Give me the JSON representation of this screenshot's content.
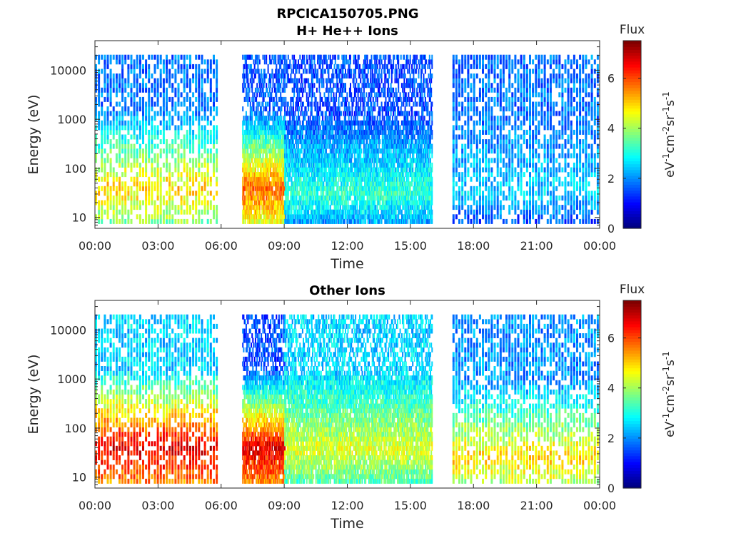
{
  "figure_title": "RPCICA150705.PNG",
  "colorbar": {
    "label": "Flux",
    "units_parts": [
      "eV",
      "-1",
      "cm",
      "-2",
      "sr",
      "-1",
      "s",
      "-1"
    ],
    "ticks": [
      "0",
      "2",
      "4",
      "6"
    ],
    "range": [
      0,
      7.5
    ]
  },
  "colors": {
    "axis": "#262626",
    "title": "#000000",
    "background": "#ffffff"
  },
  "chart_data": [
    {
      "type": "heatmap",
      "title": "H+ He++ Ions",
      "xlabel": "Time",
      "ylabel": "Energy (eV)",
      "y_scale": "log",
      "ylim": [
        6,
        40000
      ],
      "xlim": [
        "00:00",
        "24:00"
      ],
      "x_tick_labels": [
        "00:00",
        "03:00",
        "06:00",
        "09:00",
        "12:00",
        "15:00",
        "18:00",
        "21:00",
        "00:00"
      ],
      "y_tick_labels": [
        "10",
        "100",
        "1000",
        "10000"
      ],
      "data_gaps": [
        [
          "05:45",
          "07:00"
        ],
        [
          "16:00",
          "17:00"
        ]
      ],
      "segments": [
        {
          "start": "00:00",
          "end": "05:45",
          "mode": "burst",
          "peak_energy_eV": 40,
          "peak_flux": 5.0,
          "high_energy_flux": 1.8
        },
        {
          "start": "07:00",
          "end": "09:00",
          "mode": "continuous",
          "peak_energy_eV": 40,
          "peak_flux": 5.8,
          "high_energy_flux": 1.6
        },
        {
          "start": "09:00",
          "end": "16:00",
          "mode": "continuous",
          "peak_energy_eV": 30,
          "peak_flux": 3.2,
          "high_energy_flux": 1.5
        },
        {
          "start": "17:00",
          "end": "24:00",
          "mode": "burst",
          "peak_energy_eV": 30,
          "peak_flux": 2.5,
          "high_energy_flux": 1.8
        }
      ]
    },
    {
      "type": "heatmap",
      "title": "Other Ions",
      "xlabel": "Time",
      "ylabel": "Energy (eV)",
      "y_scale": "log",
      "ylim": [
        6,
        40000
      ],
      "xlim": [
        "00:00",
        "24:00"
      ],
      "x_tick_labels": [
        "00:00",
        "03:00",
        "06:00",
        "09:00",
        "12:00",
        "15:00",
        "18:00",
        "21:00",
        "00:00"
      ],
      "y_tick_labels": [
        "10",
        "100",
        "1000",
        "10000"
      ],
      "data_gaps": [
        [
          "05:45",
          "07:00"
        ],
        [
          "16:00",
          "17:00"
        ]
      ],
      "segments": [
        {
          "start": "00:00",
          "end": "05:45",
          "mode": "burst",
          "peak_energy_eV": 40,
          "peak_flux": 6.8,
          "high_energy_flux": 2.5
        },
        {
          "start": "07:00",
          "end": "09:00",
          "mode": "continuous",
          "peak_energy_eV": 40,
          "peak_flux": 6.8,
          "high_energy_flux": 1.5
        },
        {
          "start": "09:00",
          "end": "16:00",
          "mode": "continuous",
          "peak_energy_eV": 35,
          "peak_flux": 4.5,
          "high_energy_flux": 2.5
        },
        {
          "start": "17:00",
          "end": "24:00",
          "mode": "burst",
          "peak_energy_eV": 25,
          "peak_flux": 5.0,
          "high_energy_flux": 2.0
        }
      ]
    }
  ]
}
